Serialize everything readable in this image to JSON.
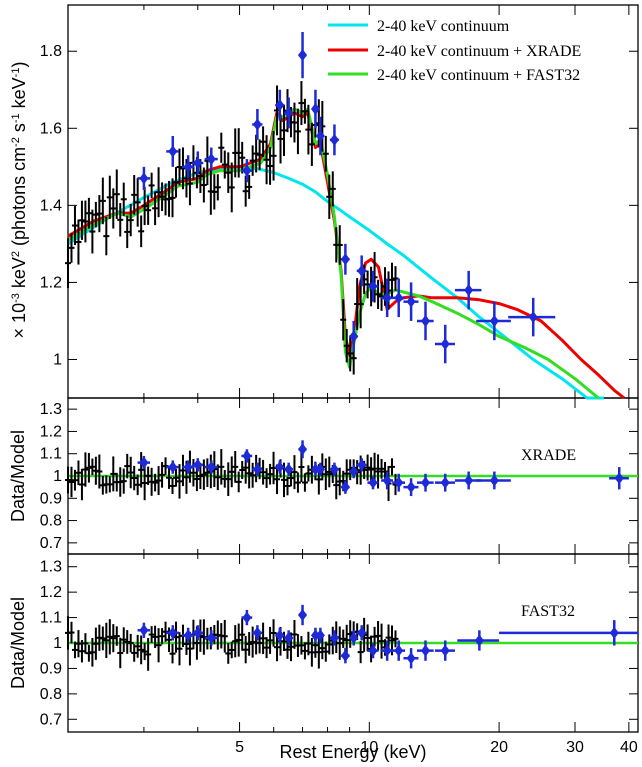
{
  "chart_data": [
    {
      "panel": "spectrum",
      "type": "scatter",
      "ylabel": "× 10-3 keV2 (photons cm-2 s-1 keV-1)",
      "x_scale": "log",
      "xlim": [
        2,
        42
      ],
      "ylim": [
        0.9,
        1.92
      ],
      "yticks": [
        1,
        1.2,
        1.4,
        1.6,
        1.8
      ],
      "grid": false,
      "legend_position": "top-right",
      "series": [
        {
          "name": "2-40 keV continuum",
          "kind": "model",
          "color": "#00e5ee",
          "x": [
            2.0,
            2.5,
            3.0,
            3.5,
            4.0,
            4.5,
            5.0,
            5.5,
            6.0,
            6.5,
            7.0,
            7.5,
            8.0,
            8.5,
            9.0,
            10.0,
            11.0,
            12.0,
            14.0,
            16.0,
            18.0,
            20.0,
            24.0,
            28.0,
            32.0,
            35.0
          ],
          "y": [
            1.3,
            1.37,
            1.42,
            1.46,
            1.485,
            1.495,
            1.5,
            1.495,
            1.485,
            1.47,
            1.455,
            1.435,
            1.41,
            1.39,
            1.37,
            1.335,
            1.3,
            1.27,
            1.21,
            1.16,
            1.11,
            1.07,
            1.0,
            0.95,
            0.9,
            0.86
          ]
        },
        {
          "name": "2-40 keV continuum + XRADE",
          "kind": "model",
          "color": "#ee0000",
          "x": [
            2.0,
            2.3,
            2.6,
            2.8,
            3.0,
            3.3,
            3.6,
            4.0,
            4.2,
            4.5,
            5.0,
            5.3,
            5.6,
            5.9,
            6.1,
            6.3,
            6.5,
            6.7,
            7.0,
            7.2,
            7.5,
            7.7,
            8.0,
            8.3,
            8.6,
            8.8,
            9.0,
            9.2,
            9.5,
            9.8,
            10.1,
            10.5,
            11.0,
            11.5,
            12.0,
            13.0,
            14.0,
            16.0,
            18.0,
            20.0,
            22.0,
            25.0,
            28.0,
            31.0,
            34.0,
            37.0,
            39.0
          ],
          "y": [
            1.32,
            1.36,
            1.38,
            1.38,
            1.4,
            1.43,
            1.46,
            1.47,
            1.49,
            1.5,
            1.5,
            1.51,
            1.52,
            1.56,
            1.64,
            1.62,
            1.63,
            1.64,
            1.63,
            1.64,
            1.55,
            1.56,
            1.46,
            1.36,
            1.23,
            1.06,
            1.01,
            1.06,
            1.19,
            1.25,
            1.26,
            1.24,
            1.13,
            1.15,
            1.16,
            1.165,
            1.16,
            1.16,
            1.155,
            1.145,
            1.13,
            1.1,
            1.05,
            1.0,
            0.96,
            0.92,
            0.89
          ]
        },
        {
          "name": "2-40 keV continuum + FAST32",
          "kind": "model",
          "color": "#33dd22",
          "x": [
            2.0,
            2.3,
            2.6,
            2.8,
            3.0,
            3.3,
            3.6,
            4.0,
            4.2,
            4.5,
            5.0,
            5.3,
            5.6,
            5.9,
            6.1,
            6.3,
            6.5,
            6.7,
            7.0,
            7.2,
            7.5,
            7.7,
            8.0,
            8.3,
            8.6,
            8.8,
            9.0,
            9.2,
            9.5,
            9.8,
            10.1,
            10.5,
            11.0,
            11.5,
            12.0,
            13.0,
            14.0,
            16.0,
            18.0,
            20.0,
            23.0,
            26.0,
            30.0,
            34.0
          ],
          "y": [
            1.31,
            1.35,
            1.38,
            1.37,
            1.39,
            1.42,
            1.45,
            1.46,
            1.48,
            1.49,
            1.49,
            1.5,
            1.51,
            1.55,
            1.63,
            1.63,
            1.64,
            1.65,
            1.64,
            1.65,
            1.56,
            1.57,
            1.48,
            1.37,
            1.22,
            1.02,
            0.98,
            1.04,
            1.12,
            1.17,
            1.19,
            1.17,
            1.17,
            1.18,
            1.175,
            1.165,
            1.15,
            1.12,
            1.09,
            1.06,
            1.03,
            1.0,
            0.95,
            0.89
          ]
        },
        {
          "name": "",
          "kind": "data",
          "color": "#1e2ad8",
          "x": [
            3.0,
            3.5,
            3.8,
            4.0,
            4.3,
            5.2,
            5.5,
            6.2,
            6.5,
            7.0,
            7.5,
            7.7,
            8.3,
            8.8,
            9.2,
            9.6,
            10.2,
            11.0,
            11.7,
            12.5,
            13.5,
            15.0,
            17.0,
            19.5,
            24.0
          ],
          "y": [
            1.47,
            1.54,
            1.5,
            1.51,
            1.52,
            1.49,
            1.61,
            1.66,
            1.64,
            1.79,
            1.65,
            1.58,
            1.57,
            1.26,
            1.06,
            1.23,
            1.19,
            1.16,
            1.16,
            1.15,
            1.1,
            1.04,
            1.18,
            1.1,
            1.11
          ],
          "xerr": [
            0.1,
            0.12,
            0.12,
            0.12,
            0.15,
            0.15,
            0.15,
            0.15,
            0.15,
            0.15,
            0.12,
            0.12,
            0.2,
            0.2,
            0.2,
            0.25,
            0.3,
            0.35,
            0.4,
            0.5,
            0.6,
            0.8,
            1.2,
            1.8,
            3.0
          ],
          "yerr": [
            0.03,
            0.04,
            0.03,
            0.03,
            0.03,
            0.03,
            0.04,
            0.04,
            0.04,
            0.06,
            0.05,
            0.05,
            0.04,
            0.04,
            0.04,
            0.04,
            0.04,
            0.05,
            0.05,
            0.05,
            0.05,
            0.05,
            0.05,
            0.05,
            0.05
          ]
        }
      ]
    },
    {
      "panel": "ratio-xrade",
      "type": "scatter",
      "label": "XRADE",
      "ylabel": "Data/Model",
      "x_scale": "log",
      "xlim": [
        2,
        42
      ],
      "ylim": [
        0.65,
        1.35
      ],
      "yticks": [
        0.7,
        0.8,
        0.9,
        1,
        1.1,
        1.2,
        1.3
      ],
      "reference_line": {
        "y": 1,
        "color": "#33dd22"
      },
      "series": [
        {
          "name": "",
          "kind": "data",
          "color": "#1e2ad8",
          "x": [
            3.0,
            3.5,
            3.8,
            4.0,
            4.3,
            5.2,
            5.5,
            6.2,
            6.5,
            7.0,
            7.5,
            7.7,
            8.3,
            8.8,
            9.2,
            9.6,
            10.2,
            11.0,
            11.7,
            12.5,
            13.5,
            15.0,
            17.0,
            19.5,
            38.0
          ],
          "y": [
            1.06,
            1.04,
            1.04,
            1.05,
            1.04,
            1.09,
            1.03,
            1.04,
            1.03,
            1.12,
            1.03,
            1.03,
            1.03,
            0.95,
            1.02,
            1.05,
            0.97,
            0.98,
            0.97,
            0.95,
            0.97,
            0.97,
            0.98,
            0.98,
            0.99
          ],
          "xerr": [
            0.1,
            0.12,
            0.12,
            0.12,
            0.15,
            0.15,
            0.15,
            0.15,
            0.15,
            0.15,
            0.12,
            0.12,
            0.2,
            0.2,
            0.2,
            0.25,
            0.3,
            0.35,
            0.4,
            0.5,
            0.6,
            0.8,
            1.2,
            1.8,
            2.0
          ],
          "yerr": [
            0.03,
            0.03,
            0.03,
            0.03,
            0.03,
            0.03,
            0.03,
            0.03,
            0.03,
            0.04,
            0.03,
            0.03,
            0.03,
            0.03,
            0.03,
            0.03,
            0.03,
            0.04,
            0.04,
            0.04,
            0.04,
            0.04,
            0.04,
            0.04,
            0.05
          ]
        }
      ]
    },
    {
      "panel": "ratio-fast32",
      "type": "scatter",
      "label": "FAST32",
      "ylabel": "Data/Model",
      "xlabel": "Rest Energy (keV)",
      "x_scale": "log",
      "xlim": [
        2,
        42
      ],
      "xticks": [
        5,
        10,
        20,
        30,
        40
      ],
      "ylim": [
        0.65,
        1.35
      ],
      "yticks": [
        0.7,
        0.8,
        0.9,
        1,
        1.1,
        1.2,
        1.3
      ],
      "reference_line": {
        "y": 1,
        "color": "#33dd22"
      },
      "series": [
        {
          "name": "",
          "kind": "data",
          "color": "#1e2ad8",
          "x": [
            3.0,
            3.5,
            3.8,
            4.0,
            4.3,
            5.2,
            5.5,
            6.2,
            6.5,
            7.0,
            7.5,
            7.7,
            8.3,
            8.8,
            9.2,
            9.6,
            10.2,
            11.0,
            11.7,
            12.5,
            13.5,
            15.0,
            18.0,
            37.0
          ],
          "y": [
            1.05,
            1.04,
            1.03,
            1.04,
            1.02,
            1.1,
            1.04,
            1.03,
            1.02,
            1.11,
            1.03,
            1.03,
            1.02,
            0.95,
            1.02,
            1.04,
            0.97,
            0.97,
            0.97,
            0.94,
            0.97,
            0.97,
            1.01,
            1.04
          ],
          "xerr": [
            0.1,
            0.12,
            0.12,
            0.12,
            0.15,
            0.15,
            0.15,
            0.15,
            0.15,
            0.15,
            0.12,
            0.12,
            0.2,
            0.2,
            0.2,
            0.25,
            0.3,
            0.35,
            0.4,
            0.5,
            0.6,
            0.8,
            2.0,
            17.0
          ],
          "yerr": [
            0.03,
            0.03,
            0.03,
            0.03,
            0.03,
            0.03,
            0.03,
            0.03,
            0.03,
            0.04,
            0.03,
            0.03,
            0.03,
            0.03,
            0.03,
            0.03,
            0.03,
            0.04,
            0.04,
            0.04,
            0.04,
            0.04,
            0.04,
            0.05
          ]
        }
      ]
    }
  ],
  "labels": {
    "ylabel_top_prefix": "× 10",
    "ylabel_top_exp1": "-3",
    "ylabel_top_mid1": " keV",
    "ylabel_top_exp2": "2",
    "ylabel_top_mid2": " (photons cm",
    "ylabel_top_exp3": "-2",
    "ylabel_top_mid3": " s",
    "ylabel_top_exp4": "-1",
    "ylabel_top_mid4": " keV",
    "ylabel_top_exp5": "-1",
    "ylabel_top_suffix": ")"
  }
}
